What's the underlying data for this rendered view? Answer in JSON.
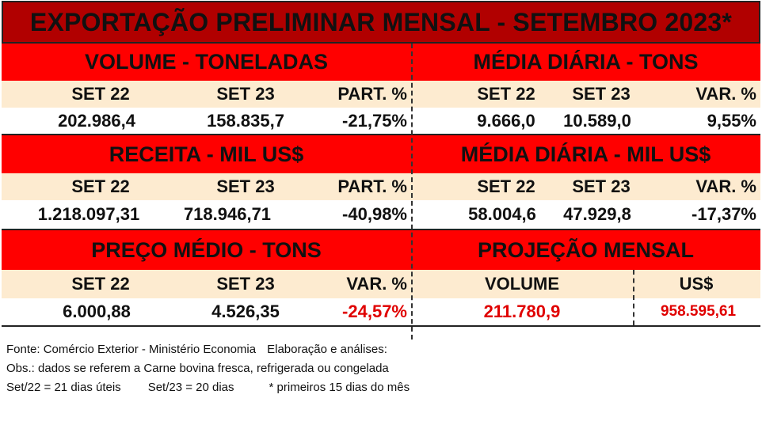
{
  "title": "EXPORTAÇÃO PRELIMINAR MENSAL  - SETEMBRO 2023*",
  "volume": {
    "heading": "VOLUME - TONELADAS",
    "col1": "SET 22",
    "col2": "SET 23",
    "col3": "PART. %",
    "v1": "202.986,4",
    "v2": "158.835,7",
    "v3": "-21,75%"
  },
  "media_volume": {
    "heading": "MÉDIA DIÁRIA - TONS",
    "col1": "SET 22",
    "col2": "SET 23",
    "col3": "VAR. %",
    "v1": "9.666,0",
    "v2": "10.589,0",
    "v3": "9,55%"
  },
  "receita": {
    "heading": "RECEITA - MIL US$",
    "col1": "SET 22",
    "col2": "SET 23",
    "col3": "PART. %",
    "v1": "1.218.097,31",
    "v2": "718.946,71",
    "v3": "-40,98%"
  },
  "media_receita": {
    "heading": "MÉDIA DIÁRIA - MIL US$",
    "col1": "SET 22",
    "col2": "SET 23",
    "col3": "VAR. %",
    "v1": "58.004,6",
    "v2": "47.929,8",
    "v3": "-17,37%"
  },
  "preco": {
    "heading": "PREÇO MÉDIO - TONS",
    "col1": "SET 22",
    "col2": "SET 23",
    "col3": "VAR. %",
    "v1": "6.000,88",
    "v2": "4.526,35",
    "v3": "-24,57%"
  },
  "projecao": {
    "heading": "PROJEÇÃO  MENSAL",
    "col1": "VOLUME",
    "col2": "US$",
    "v1": "211.780,9",
    "v2": "958.595,61"
  },
  "footer": {
    "line1a": "Fonte: Comércio Exterior - Ministério Economia",
    "line1b": "Elaboração e análises:",
    "line2": "Obs.: dados se referem a Carne bovina fresca, refrigerada ou congelada",
    "line3a": "Set/22 = 21 dias úteis",
    "line3b": "Set/23 = 20 dias",
    "line3c": "* primeiros 15 dias do mês"
  },
  "colors": {
    "title_bg": "#b10000",
    "section_bg": "#ff0000",
    "header_bg": "#fdebd0",
    "negative_highlight": "#e00000"
  }
}
